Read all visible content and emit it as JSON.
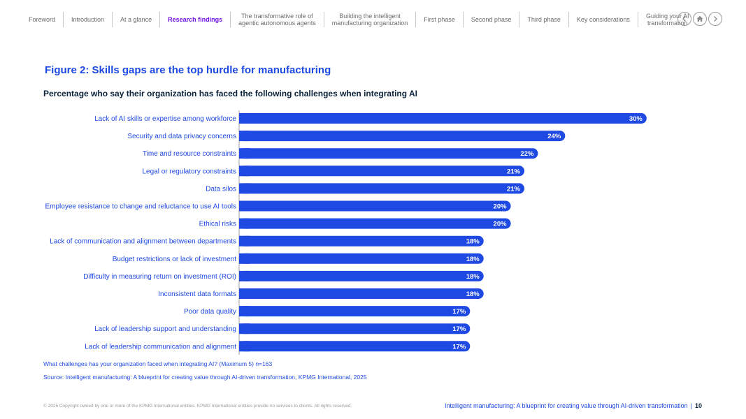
{
  "nav": {
    "items": [
      {
        "label": "Foreword",
        "active": false
      },
      {
        "label": "Introduction",
        "active": false
      },
      {
        "label": "At a glance",
        "active": false
      },
      {
        "label": "Research findings",
        "active": true
      },
      {
        "label": "The transformative role of\nagentic autonomous agents",
        "active": false
      },
      {
        "label": "Building the intelligent\nmanufacturing organization",
        "active": false
      },
      {
        "label": "First phase",
        "active": false
      },
      {
        "label": "Second phase",
        "active": false
      },
      {
        "label": "Third phase",
        "active": false
      },
      {
        "label": "Key considerations",
        "active": false
      },
      {
        "label": "Guiding your AI\ntransformation",
        "active": false
      }
    ],
    "buttons": [
      "chevron-left-icon",
      "home-icon",
      "chevron-right-icon"
    ]
  },
  "figure": {
    "title": "Figure 2: Skills gaps are the top hurdle for manufacturing",
    "subtitle": "Percentage who say their organization has faced the following challenges when integrating AI"
  },
  "chart_data": {
    "type": "bar",
    "orientation": "horizontal",
    "title": "Figure 2: Skills gaps are the top hurdle for manufacturing",
    "subtitle": "Percentage who say their organization has faced the following challenges when integrating AI",
    "categories": [
      "Lack of AI skills or expertise among workforce",
      "Security and data privacy concerns",
      "Time and resource constraints",
      "Legal or regulatory constraints",
      "Data silos",
      "Employee resistance to change and reluctance to use AI tools",
      "Ethical risks",
      "Lack of communication and alignment between departments",
      "Budget restrictions or lack of investment",
      "Difficulty in measuring return on investment (ROI)",
      "Inconsistent data formats",
      "Poor data quality",
      "Lack of leadership support and understanding",
      "Lack of leadership communication and alignment"
    ],
    "values": [
      30,
      24,
      22,
      21,
      21,
      20,
      20,
      18,
      18,
      18,
      18,
      17,
      17,
      17
    ],
    "value_suffix": "%",
    "xlim": [
      0,
      35
    ],
    "xlabel": "",
    "ylabel": "",
    "grid": false,
    "bar_color": "#1e49e2"
  },
  "notes": {
    "question": "What challenges has your organization faced when integrating AI? (Maximum 5) n=163",
    "source": "Source: Intelligent manufacturing: A blueprint for creating value through AI-driven transformation, KPMG International, 2025"
  },
  "footer": {
    "copyright": "© 2025 Copyright owned by one or more of the KPMG International entities. KPMG International entities provide no services to clients. All rights reserved.",
    "doc_title": "Intelligent manufacturing: A blueprint for creating value through AI-driven transformation",
    "separator": "|",
    "page_number": "10"
  }
}
